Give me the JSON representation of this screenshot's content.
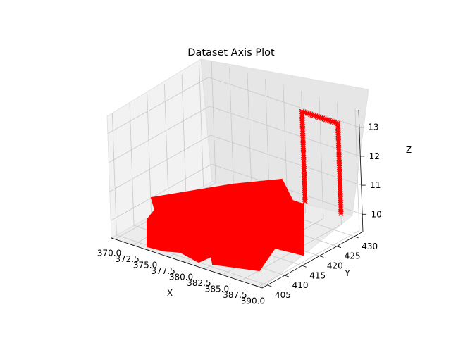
{
  "chart_data": {
    "type": "scatter",
    "projection": "3d",
    "title": "Dataset Axis Plot",
    "xlabel": "X",
    "ylabel": "Y",
    "zlabel": "Z",
    "grid": true,
    "xlim": [
      369.5,
      390.5
    ],
    "ylim": [
      403.5,
      432.5
    ],
    "zlim": [
      9.4,
      13.6
    ],
    "x_ticks": [
      "370.0",
      "372.5",
      "375.0",
      "377.5",
      "380.0",
      "382.5",
      "385.0",
      "387.5",
      "390.0"
    ],
    "y_ticks": [
      "405",
      "410",
      "415",
      "420",
      "425",
      "430"
    ],
    "z_ticks": [
      "10",
      "11",
      "12",
      "13"
    ],
    "marker": "x",
    "series": [
      {
        "color": "#ff0000",
        "description_points": "dense point cloud forming a slab at z≈10 plus a rectangular frame rising to z≈13",
        "slab": {
          "x_range": [
            372,
            390
          ],
          "y_range": [
            405,
            431
          ],
          "z": 10
        },
        "frame": [
          {
            "x": 383.5,
            "y": 430.5,
            "z": 10
          },
          {
            "x": 383.5,
            "y": 430.5,
            "z": 13.1
          },
          {
            "x": 388.5,
            "y": 430.5,
            "z": 13.1
          },
          {
            "x": 388.5,
            "y": 430.5,
            "z": 10
          }
        ]
      }
    ]
  }
}
